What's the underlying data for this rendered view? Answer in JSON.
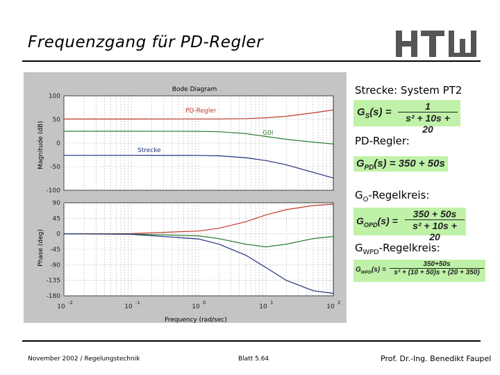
{
  "slide": {
    "title": "Frequenzgang für PD-Regler"
  },
  "logo": {
    "text": "HTW"
  },
  "figure": {
    "title": "Bode Diagram",
    "mag_ylabel": "Magnitude (dB)",
    "phase_ylabel": "Phase (deg)",
    "xlabel": "Frequency (rad/sec)",
    "annotations": {
      "pd": "PD-Regler",
      "go": "G0I",
      "strecke": "Strecke"
    }
  },
  "chart_data": [
    {
      "type": "line",
      "title": "Bode Diagram",
      "ylabel": "Magnitude (dB)",
      "xscale": "log",
      "xlim": [
        0.01,
        100
      ],
      "ylim": [
        -100,
        100
      ],
      "yticks": [
        100,
        50,
        0,
        -50,
        -100
      ],
      "grid": true,
      "x": [
        0.01,
        0.1,
        1,
        2,
        5,
        10,
        20,
        50,
        100
      ],
      "series": [
        {
          "name": "PD-Regler",
          "color": "#c0392b",
          "values": [
            50.9,
            50.9,
            51.0,
            51.1,
            51.8,
            53.5,
            56.6,
            64.0,
            70.0
          ]
        },
        {
          "name": "G0I",
          "color": "#2e7d32",
          "values": [
            25,
            25,
            24.8,
            24,
            20,
            14,
            8,
            2,
            -2
          ]
        },
        {
          "name": "Strecke",
          "color": "#1f2d7a",
          "values": [
            -26,
            -26,
            -26.2,
            -27,
            -31,
            -37,
            -46,
            -62,
            -74
          ]
        }
      ]
    },
    {
      "type": "line",
      "ylabel": "Phase (deg)",
      "xscale": "log",
      "xlim": [
        0.01,
        100
      ],
      "ylim": [
        -180,
        90
      ],
      "yticks": [
        90,
        45,
        0,
        -45,
        -90,
        -135,
        -180
      ],
      "grid": true,
      "x": [
        0.01,
        0.1,
        1,
        2,
        5,
        10,
        20,
        50,
        100
      ],
      "series": [
        {
          "name": "PD-Regler",
          "color": "#c0392b",
          "values": [
            0,
            0.8,
            8,
            16,
            35,
            55,
            70,
            82,
            86
          ]
        },
        {
          "name": "G0I",
          "color": "#2e7d32",
          "values": [
            0,
            -0.6,
            -6,
            -14,
            -30,
            -38,
            -30,
            -14,
            -8
          ]
        },
        {
          "name": "Strecke",
          "color": "#1f2d7a",
          "values": [
            0,
            -1.5,
            -15,
            -30,
            -62,
            -98,
            -135,
            -165,
            -173
          ]
        }
      ]
    }
  ],
  "axis": {
    "mag_ticks": [
      "100",
      "50",
      "0",
      "-50",
      "-100"
    ],
    "phase_ticks": [
      "90",
      "45",
      "0",
      "-45",
      "-90",
      "-135",
      "-180"
    ],
    "x_ticks_base": [
      "10",
      "10",
      "10",
      "10",
      "10"
    ],
    "x_ticks_exp": [
      "-2",
      "-1",
      "0",
      "1",
      "2"
    ]
  },
  "right": {
    "strecke_title": "Strecke: System PT2",
    "gs_lhs": "G",
    "gs_sub": "S",
    "gs_arg": "(s) =",
    "gs_num": "1",
    "gs_den": "s² + 10s + 20",
    "pd_title": "PD-Regler:",
    "gpd_lhs": "G",
    "gpd_sub": "PD",
    "gpd_rhs": "(s) = 350 + 50s",
    "go_title_main": "G",
    "go_title_sub": "O",
    "go_title_rest": "-Regelkreis:",
    "go_lhs": "G",
    "go_sub": "OPD",
    "go_arg": "(s) =",
    "go_num": "350 + 50s",
    "go_den": "s² + 10s + 20",
    "gw_title_main": "G",
    "gw_title_sub": "WPD",
    "gw_title_rest": "-Regelkreis:",
    "gw_lhs": "G",
    "gw_sub": "WPD",
    "gw_arg": "(s) =",
    "gw_num": "350+50s",
    "gw_den": "s² + (10 + 50)s + (20 + 350)"
  },
  "footer": {
    "left": "November 2002 / Regelungstechnik",
    "center": "Blatt 5.64",
    "right": "Prof. Dr.-Ing. Benedikt Faupel"
  }
}
